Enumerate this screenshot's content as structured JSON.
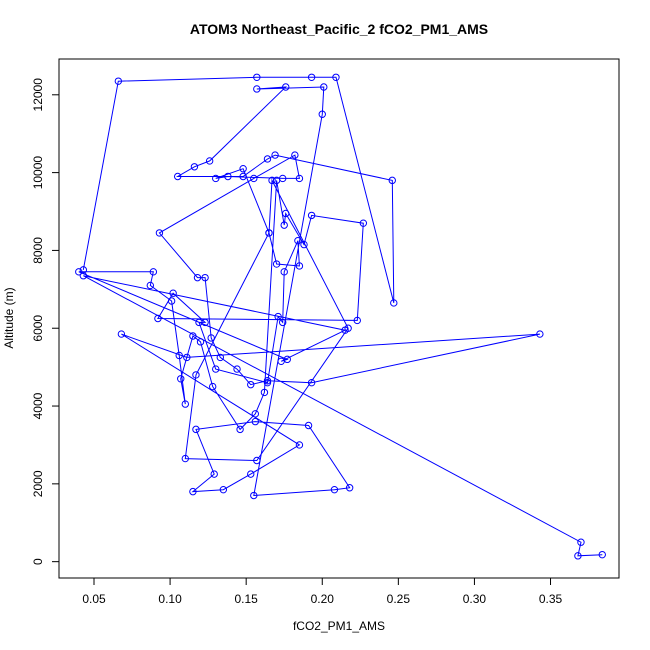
{
  "chart_data": {
    "type": "line",
    "title": "ATOM3 Northeast_Pacific_2 fCO2_PM1_AMS",
    "xlabel": "fCO2_PM1_AMS",
    "ylabel": "Altitude (m)",
    "xlim": [
      0.027,
      0.395
    ],
    "ylim": [
      -420,
      12920
    ],
    "xticks": [
      0.05,
      0.1,
      0.15,
      0.2,
      0.25,
      0.3,
      0.35
    ],
    "xtick_labels": [
      "0.05",
      "0.10",
      "0.15",
      "0.20",
      "0.25",
      "0.30",
      "0.35"
    ],
    "yticks": [
      0,
      2000,
      4000,
      6000,
      8000,
      10000,
      12000
    ],
    "ytick_labels": [
      "0",
      "2000",
      "4000",
      "6000",
      "8000",
      "10000",
      "12000"
    ],
    "grid": false,
    "legend": "none",
    "series": [
      {
        "color": "#0000ff",
        "marker": "open-circle",
        "x": [
          0.384,
          0.368,
          0.37,
          0.043,
          0.215,
          0.173,
          0.177,
          0.04,
          0.089,
          0.087,
          0.101,
          0.106,
          0.11,
          0.107,
          0.115,
          0.12,
          0.128,
          0.146,
          0.156,
          0.162,
          0.17,
          0.175,
          0.176,
          0.188,
          0.193,
          0.227,
          0.223,
          0.092,
          0.102,
          0.123,
          0.119,
          0.13,
          0.164,
          0.171,
          0.174,
          0.175,
          0.184,
          0.185,
          0.17,
          0.165,
          0.167,
          0.217,
          0.157,
          0.11,
          0.117,
          0.165,
          0.148,
          0.13,
          0.138,
          0.174,
          0.185,
          0.182,
          0.155,
          0.093,
          0.118,
          0.123,
          0.127,
          0.133,
          0.144,
          0.153,
          0.164,
          0.193,
          0.343,
          0.111,
          0.068,
          0.185,
          0.153,
          0.135,
          0.115,
          0.129,
          0.117,
          0.156,
          0.191,
          0.218,
          0.208,
          0.155,
          0.2,
          0.201,
          0.157,
          0.176,
          0.126,
          0.116,
          0.105,
          0.148,
          0.164,
          0.169,
          0.246,
          0.247,
          0.209,
          0.193,
          0.157,
          0.066,
          0.043
        ],
        "y": [
          180,
          150,
          500,
          7350,
          5950,
          5150,
          5200,
          7450,
          7450,
          7100,
          6700,
          5300,
          4050,
          4700,
          5800,
          5650,
          4500,
          3400,
          3800,
          4350,
          9800,
          8650,
          8950,
          8150,
          8900,
          8700,
          6200,
          6250,
          6900,
          6150,
          6150,
          4950,
          4600,
          6300,
          6150,
          7450,
          8250,
          7600,
          7650,
          8450,
          9800,
          6000,
          2600,
          2650,
          4800,
          8450,
          10100,
          9850,
          9900,
          9850,
          9850,
          10450,
          9850,
          8450,
          7300,
          7300,
          5750,
          5250,
          4950,
          4550,
          4650,
          4600,
          5850,
          5250,
          5850,
          3000,
          2250,
          1850,
          1800,
          2250,
          3400,
          3600,
          3500,
          1900,
          1850,
          1700,
          11500,
          12200,
          12150,
          12200,
          10300,
          10150,
          9900,
          9900,
          10350,
          10450,
          9800,
          6650,
          12450,
          12450,
          12450,
          12350,
          7500
        ]
      }
    ]
  }
}
